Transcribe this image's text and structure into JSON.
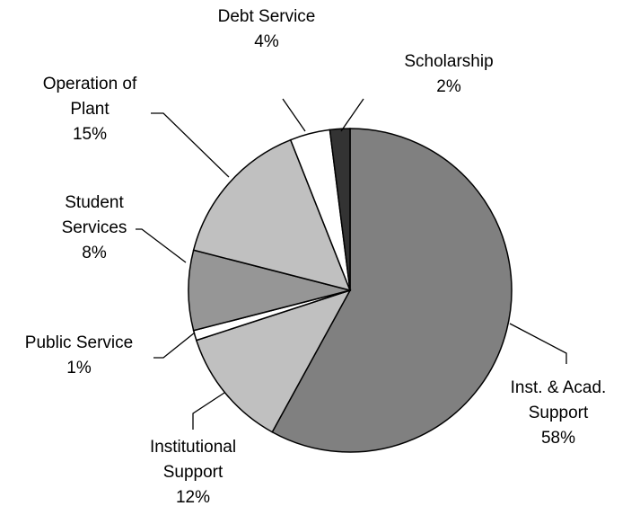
{
  "chart_data": {
    "type": "pie",
    "title": "",
    "legend": "none",
    "slices": [
      {
        "label_lines": [
          "Inst. & Acad.",
          "Support"
        ],
        "percent_label": "58%",
        "value": 58,
        "color": "#808080"
      },
      {
        "label_lines": [
          "Institutional",
          "Support"
        ],
        "percent_label": "12%",
        "value": 12,
        "color": "#c0c0c0"
      },
      {
        "label_lines": [
          "Public Service"
        ],
        "percent_label": "1%",
        "value": 1,
        "color": "#ffffff"
      },
      {
        "label_lines": [
          "Student",
          "Services"
        ],
        "percent_label": "8%",
        "value": 8,
        "color": "#969696"
      },
      {
        "label_lines": [
          "Operation of",
          "Plant"
        ],
        "percent_label": "15%",
        "value": 15,
        "color": "#c0c0c0"
      },
      {
        "label_lines": [
          "Debt Service"
        ],
        "percent_label": "4%",
        "value": 4,
        "color": "#ffffff"
      },
      {
        "label_lines": [
          "Scholarship"
        ],
        "percent_label": "2%",
        "value": 2,
        "color": "#333333"
      }
    ]
  }
}
